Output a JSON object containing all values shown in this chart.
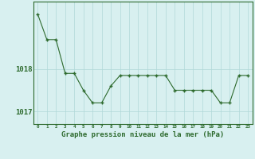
{
  "hours": [
    0,
    1,
    2,
    3,
    4,
    5,
    6,
    7,
    8,
    9,
    10,
    11,
    12,
    13,
    14,
    15,
    16,
    17,
    18,
    19,
    20,
    21,
    22,
    23
  ],
  "pressure": [
    1019.3,
    1018.7,
    1018.7,
    1017.9,
    1017.9,
    1017.5,
    1017.2,
    1017.2,
    1017.6,
    1017.85,
    1017.85,
    1017.85,
    1017.85,
    1017.85,
    1017.85,
    1017.5,
    1017.5,
    1017.5,
    1017.5,
    1017.5,
    1017.2,
    1017.2,
    1017.85,
    1017.85
  ],
  "line_color": "#2d6a2d",
  "marker": "+",
  "background_color": "#d8f0f0",
  "grid_color": "#b0d8d8",
  "xlabel": "Graphe pression niveau de la mer (hPa)",
  "xlabel_color": "#2d6a2d",
  "ytick_labels": [
    "1017",
    "1018"
  ],
  "ytick_values": [
    1017.0,
    1018.0
  ],
  "ylim": [
    1016.7,
    1019.6
  ],
  "xlim": [
    -0.5,
    23.5
  ],
  "tick_color": "#2d6a2d",
  "spine_color": "#2d6a2d",
  "figsize": [
    3.2,
    2.0
  ],
  "dpi": 100
}
